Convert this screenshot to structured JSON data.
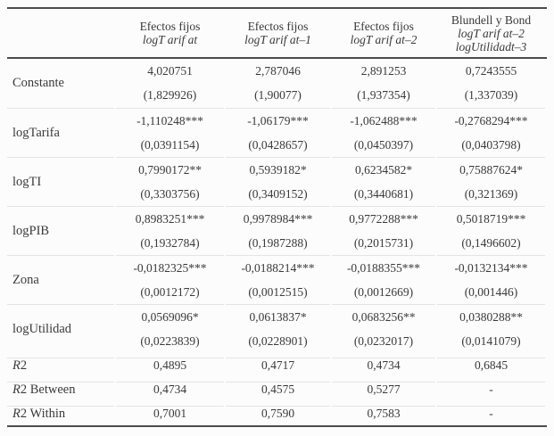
{
  "table": {
    "columns": [
      {
        "line1": "Efectos fijos",
        "line2": "logT arif at",
        "line3": ""
      },
      {
        "line1": "Efectos fijos",
        "line2": "logT arif at–1",
        "line3": ""
      },
      {
        "line1": "Efectos fijos",
        "line2": "logT arif at–2",
        "line3": ""
      },
      {
        "line1": "Blundell y Bond",
        "line2": "logT arif at–2",
        "line3": "logUtilidadt–3"
      }
    ],
    "coef_rows": [
      {
        "label": "Constante",
        "estimates": [
          "4,020751",
          "2,787046",
          "2,891253",
          "0,7243555"
        ],
        "errors": [
          "(1,829926)",
          "(1,90077)",
          "(1,937354)",
          "(1,337039)"
        ]
      },
      {
        "label": "logTarifa",
        "estimates": [
          "-1,110248***",
          "-1,06179***",
          "-1,062488***",
          "-0,2768294***"
        ],
        "errors": [
          "(0,0391154)",
          "(0,0428657)",
          "(0,0450397)",
          "(0,0403798)"
        ]
      },
      {
        "label": "logTI",
        "estimates": [
          "0,7990172**",
          "0,5939182*",
          "0,6234582*",
          "0,75887624*"
        ],
        "errors": [
          "(0,3303756)",
          "(0,3409152)",
          "(0,3440681)",
          "(0,321369)"
        ]
      },
      {
        "label": "logPIB",
        "estimates": [
          "0,8983251***",
          "0,9978984***",
          "0,9772288***",
          "0,5018719***"
        ],
        "errors": [
          "(0,1932784)",
          "(0,1987288)",
          "(0,2015731)",
          "(0,1496602)"
        ]
      },
      {
        "label": "Zona",
        "estimates": [
          "-0,0182325***",
          "-0,0188214***",
          "-0,0188355***",
          "-0,0132134***"
        ],
        "errors": [
          "(0,0012172)",
          "(0,0012515)",
          "(0,0012669)",
          "(0,001446)"
        ]
      },
      {
        "label": "logUtilidad",
        "estimates": [
          "0,0569096*",
          "0,0613837*",
          "0,0683256**",
          "0,0380288**"
        ],
        "errors": [
          "(0,0223839)",
          "(0,0228901)",
          "(0,0232017)",
          "(0,0141079)"
        ]
      }
    ],
    "stat_rows": [
      {
        "label_prefix": "R",
        "label_rest": "2",
        "values": [
          "0,4895",
          "0,4717",
          "0,4734",
          "0,6845"
        ]
      },
      {
        "label_prefix": "R",
        "label_rest": "2 Between",
        "values": [
          "0,4734",
          "0,4575",
          "0,5277",
          "-"
        ]
      },
      {
        "label_prefix": "R",
        "label_rest": "2 Within",
        "values": [
          "0,7001",
          "0,7590",
          "0,7583",
          "-"
        ]
      }
    ]
  }
}
